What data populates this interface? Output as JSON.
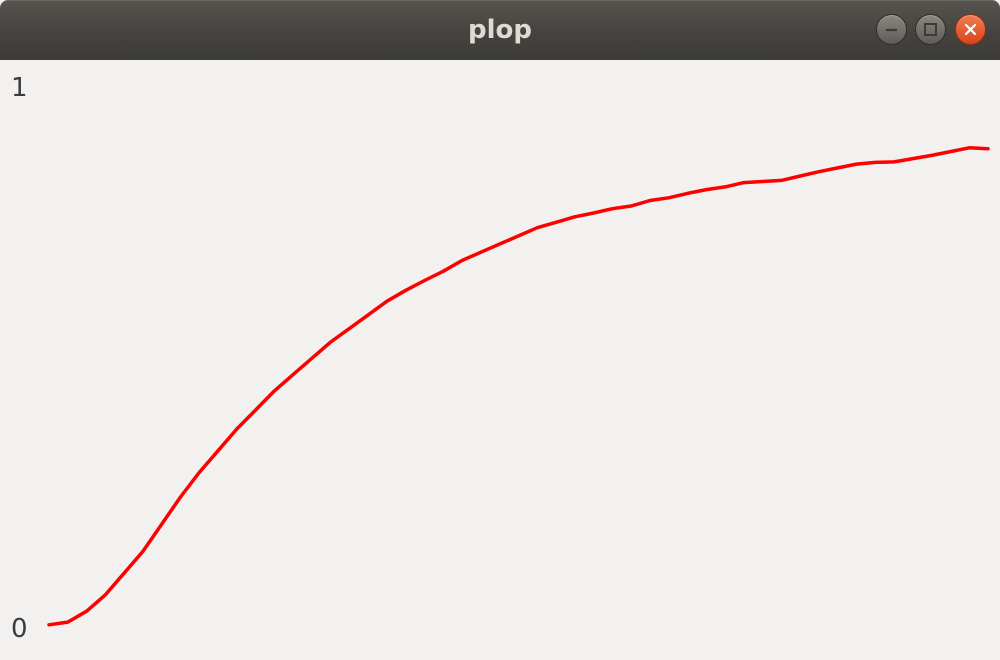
{
  "window": {
    "title": "plop",
    "controls": [
      "minimize-icon",
      "maximize-icon",
      "close-icon"
    ],
    "titlebar_color": "#45433f",
    "close_button_color": "#e5542a"
  },
  "chart_data": {
    "type": "line",
    "title": "",
    "xlabel": "",
    "ylabel": "",
    "ylim": [
      0,
      1
    ],
    "yticks": [
      "0",
      "1"
    ],
    "grid": false,
    "legend": "none",
    "series": [
      {
        "color": "#ff0000",
        "x": [
          0,
          0.02,
          0.04,
          0.06,
          0.08,
          0.1,
          0.12,
          0.14,
          0.16,
          0.18,
          0.2,
          0.22,
          0.24,
          0.26,
          0.28,
          0.3,
          0.32,
          0.34,
          0.36,
          0.38,
          0.4,
          0.42,
          0.44,
          0.46,
          0.48,
          0.5,
          0.52,
          0.54,
          0.56,
          0.58,
          0.6,
          0.62,
          0.64,
          0.66,
          0.68,
          0.7,
          0.72,
          0.74,
          0.76,
          0.78,
          0.8,
          0.82,
          0.84,
          0.86,
          0.88,
          0.9,
          0.92,
          0.94,
          0.96,
          0.98,
          1.0
        ],
        "y": [
          0.015,
          0.02,
          0.04,
          0.07,
          0.11,
          0.15,
          0.2,
          0.25,
          0.295,
          0.335,
          0.375,
          0.41,
          0.445,
          0.475,
          0.505,
          0.535,
          0.56,
          0.585,
          0.61,
          0.63,
          0.648,
          0.665,
          0.685,
          0.7,
          0.715,
          0.73,
          0.745,
          0.755,
          0.765,
          0.772,
          0.78,
          0.785,
          0.795,
          0.8,
          0.808,
          0.815,
          0.82,
          0.828,
          0.83,
          0.832,
          0.84,
          0.848,
          0.855,
          0.862,
          0.865,
          0.866,
          0.872,
          0.878,
          0.885,
          0.892,
          0.89
        ]
      }
    ]
  }
}
